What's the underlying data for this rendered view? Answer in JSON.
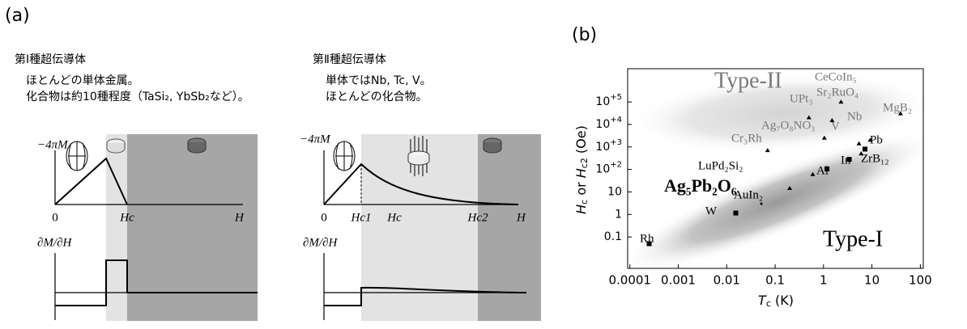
{
  "panel_a": {
    "label": "(a)",
    "type1": {
      "title": "第Ⅰ種超伝導体",
      "line1": "ほとんどの単体金属。",
      "line2": "化合物は約10種程度（TaSi₂, YbSb₂など）。",
      "ylabel": "−4πM",
      "origin": "0",
      "hc": "Hc",
      "h": "H",
      "dlabel": "∂M/∂H"
    },
    "type2": {
      "title": "第Ⅱ種超伝導体",
      "line1": "単体ではNb, Tc, V。",
      "line2": "ほとんどの化合物。",
      "ylabel": "−4πM",
      "origin": "0",
      "hc1": "Hc1",
      "hc": "Hc",
      "hc2": "Hc2",
      "h": "H",
      "dlabel": "∂M/∂H"
    }
  },
  "chart_data": {
    "type": "scatter",
    "panel_label": "(b)",
    "xlabel": [
      "T",
      "c",
      " (K)"
    ],
    "ylabel": [
      "H",
      "c",
      " or ",
      "H",
      "c2",
      " (Oe)"
    ],
    "log_x": true,
    "log_y": true,
    "xlim": [
      9e-05,
      115
    ],
    "ylim": [
      0.004,
      3000000
    ],
    "xticks": [
      0.0001,
      0.001,
      0.01,
      0.1,
      1,
      10,
      100
    ],
    "yticks": [
      0.1,
      1,
      10,
      {
        "value": 100,
        "label": "10",
        "sup": "+2"
      },
      {
        "value": 1000,
        "label": "10",
        "sup": "+3"
      },
      {
        "value": 10000,
        "label": "10",
        "sup": "+4"
      },
      {
        "value": 100000,
        "label": "10",
        "sup": "+5"
      }
    ],
    "annotations": [
      "Type-II",
      "Type-I"
    ],
    "point_labels": [
      "Rh",
      "W",
      "Ag₅Pb₂O₆",
      "AuIn₂",
      "LuPd₂Si₂",
      "Al",
      "In",
      "ZrB₁₂",
      "Pb",
      "V",
      "Nb",
      "MgB₂",
      "Sr₂RuO₄",
      "CeCoIn₅",
      "UPt₃",
      "Ag₇O₈NO₃",
      "Cr₃Rh"
    ],
    "x": [
      0.00025,
      0.0154,
      0.052,
      0.2,
      0.6,
      1.18,
      3.4,
      6,
      7.2,
      5.4,
      9.2,
      39,
      1.5,
      2.3,
      0.5,
      1.04,
      0.07
    ],
    "values": [
      0.05,
      1.15,
      3,
      14.5,
      60,
      105,
      280,
      500,
      800,
      1400,
      2000,
      30000,
      15000,
      100000,
      20000,
      2500,
      700
    ],
    "markers": [
      "square",
      "square",
      "dot",
      "triangle",
      "triangle",
      "square",
      "square",
      "triangle",
      "square",
      "triangle",
      "triangle",
      "triangle",
      "triangle",
      "triangle",
      "triangle",
      "triangle",
      "triangle"
    ],
    "color": "#000000"
  }
}
